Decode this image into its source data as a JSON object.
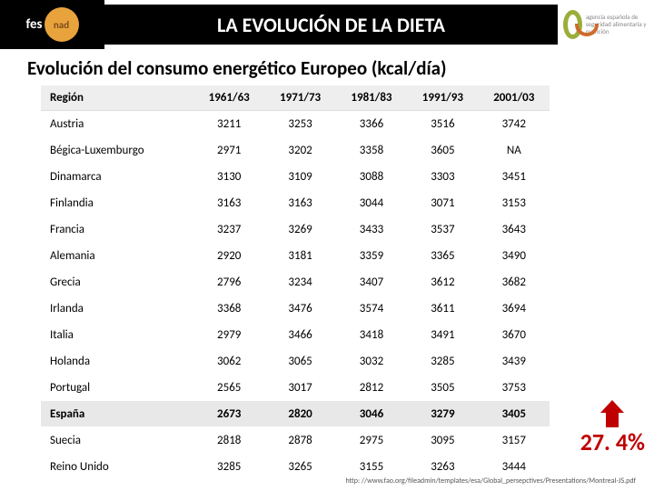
{
  "header": {
    "logo_left_text": "fes",
    "logo_left_circle": "nad",
    "title": "LA EVOLUCIÓN DE LA DIETA",
    "logo_right_text": "agencia española de seguridad alimentaria y nutrición"
  },
  "subtitle": "Evolución del consumo energético Europeo (kcal/día)",
  "table": {
    "columns": [
      "Región",
      "1961/63",
      "1971/73",
      "1981/83",
      "1991/93",
      "2001/03"
    ],
    "rows": [
      {
        "cells": [
          "Austria",
          "3211",
          "3253",
          "3366",
          "3516",
          "3742"
        ],
        "highlight": false
      },
      {
        "cells": [
          "Bégica-Luxemburgo",
          "2971",
          "3202",
          "3358",
          "3605",
          "NA"
        ],
        "highlight": false
      },
      {
        "cells": [
          "Dinamarca",
          "3130",
          "3109",
          "3088",
          "3303",
          "3451"
        ],
        "highlight": false
      },
      {
        "cells": [
          "Finlandia",
          "3163",
          "3163",
          "3044",
          "3071",
          "3153"
        ],
        "highlight": false
      },
      {
        "cells": [
          "Francia",
          "3237",
          "3269",
          "3433",
          "3537",
          "3643"
        ],
        "highlight": false
      },
      {
        "cells": [
          "Alemania",
          "2920",
          "3181",
          "3359",
          "3365",
          "3490"
        ],
        "highlight": false
      },
      {
        "cells": [
          "Grecia",
          "2796",
          "3234",
          "3407",
          "3612",
          "3682"
        ],
        "highlight": false
      },
      {
        "cells": [
          "Irlanda",
          "3368",
          "3476",
          "3574",
          "3611",
          "3694"
        ],
        "highlight": false
      },
      {
        "cells": [
          "Italia",
          "2979",
          "3466",
          "3418",
          "3491",
          "3670"
        ],
        "highlight": false
      },
      {
        "cells": [
          "Holanda",
          "3062",
          "3065",
          "3032",
          "3285",
          "3439"
        ],
        "highlight": false
      },
      {
        "cells": [
          "Portugal",
          "2565",
          "3017",
          "2812",
          "3505",
          "3753"
        ],
        "highlight": false
      },
      {
        "cells": [
          "España",
          "2673",
          "2820",
          "3046",
          "3279",
          "3405"
        ],
        "highlight": true
      },
      {
        "cells": [
          "Suecia",
          "2818",
          "2878",
          "2975",
          "3095",
          "3157"
        ],
        "highlight": false
      },
      {
        "cells": [
          "Reino Unido",
          "3285",
          "3265",
          "3155",
          "3263",
          "3444"
        ],
        "highlight": false
      }
    ],
    "col_widths": [
      "30%",
      "14%",
      "14%",
      "14%",
      "14%",
      "14%"
    ]
  },
  "callout": {
    "percent": "27. 4%",
    "arrow_color": "#c00000"
  },
  "source": "http: //www.fao.org/fileadmin/templates/esa/Global_persepctives/Presentations/Montreal-JS.pdf",
  "style": {
    "header_bg": "#000000",
    "header_fg": "#ffffff",
    "table_header_bg": "#eeeeee",
    "highlight_bg": "#e8e8e8",
    "callout_color": "#c00000",
    "body_bg": "#ffffff",
    "font_family": "Calibri, Arial, sans-serif",
    "title_fontsize": 22,
    "subtitle_fontsize": 21,
    "table_fontsize": 13,
    "callout_fontsize": 26
  }
}
